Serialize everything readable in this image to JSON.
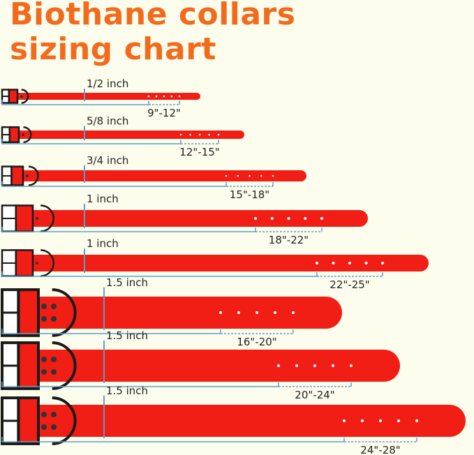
{
  "title": {
    "line1": "Biothane collars",
    "line2": "sizing chart"
  },
  "colors": {
    "title": "#f26b1d",
    "strap": "#f01e14",
    "hardware": "#1a1a1a",
    "measure_line": "#5aa0c8",
    "background": "#fdfdee"
  },
  "collars": [
    {
      "width": "1/2 inch",
      "size_range": "9\"-12\""
    },
    {
      "width": "5/8 inch",
      "size_range": "12\"-15\""
    },
    {
      "width": "3/4 inch",
      "size_range": "15\"-18\""
    },
    {
      "width": "1 inch",
      "size_range": "18\"-22\""
    },
    {
      "width": "1 inch",
      "size_range": "22\"-25\""
    },
    {
      "width": "1.5 inch",
      "size_range": "16\"-20\""
    },
    {
      "width": "1.5 inch",
      "size_range": "20\"-24\""
    },
    {
      "width": "1.5 inch",
      "size_range": "24\"-28\""
    }
  ]
}
